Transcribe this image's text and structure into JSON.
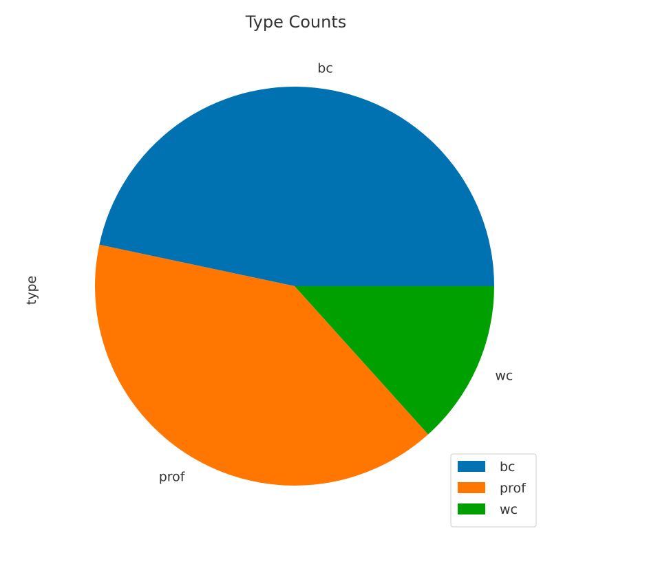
{
  "chart_data": {
    "type": "pie",
    "title": "Type Counts",
    "ylabel": "type",
    "categories": [
      "bc",
      "prof",
      "wc"
    ],
    "values": [
      21,
      18,
      6
    ],
    "colors": [
      "#0072b2",
      "#ff7700",
      "#00a000"
    ],
    "start_angle_deg": 0,
    "direction": "counterclockwise",
    "legend": {
      "placement": "lower-right",
      "entries": [
        "bc",
        "prof",
        "wc"
      ]
    }
  }
}
